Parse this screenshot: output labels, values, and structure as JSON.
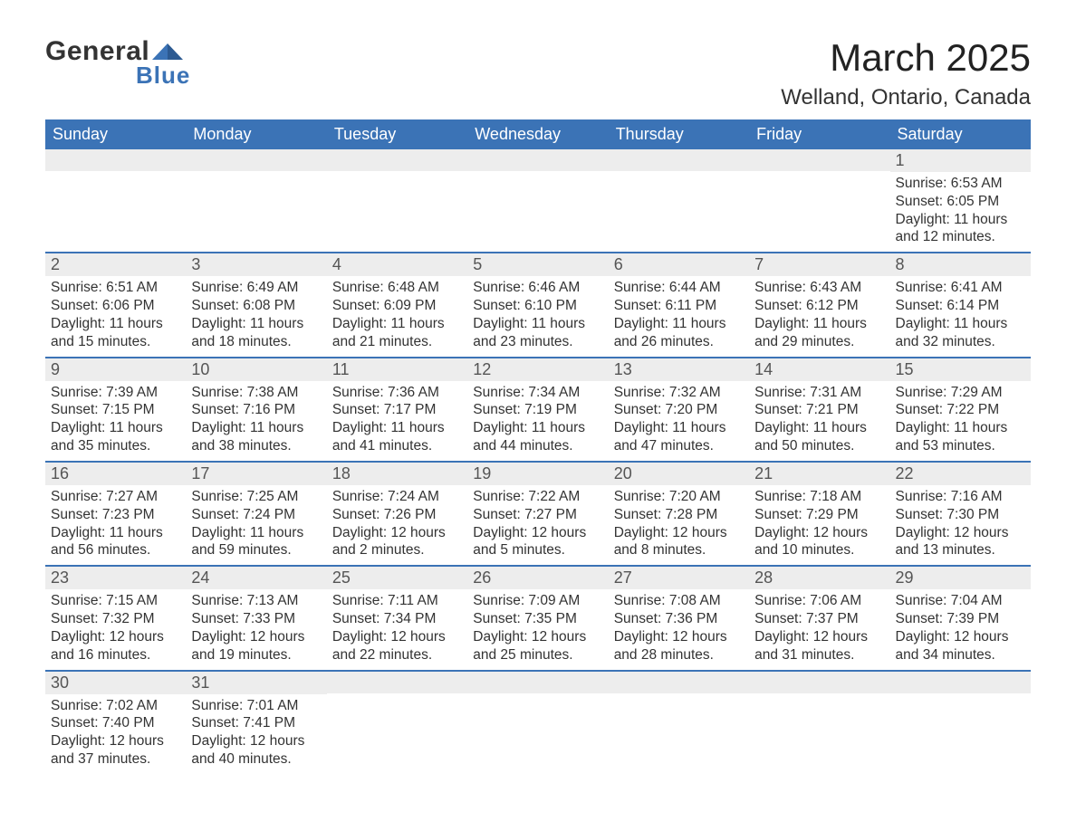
{
  "logo": {
    "text1": "General",
    "text2": "Blue",
    "accent": "#3b73b6"
  },
  "title": "March 2025",
  "location": "Welland, Ontario, Canada",
  "colors": {
    "header_bg": "#3b73b6",
    "header_text": "#ffffff",
    "row_divider": "#3b73b6",
    "daynum_bg": "#ededed",
    "text": "#333333"
  },
  "day_headers": [
    "Sunday",
    "Monday",
    "Tuesday",
    "Wednesday",
    "Thursday",
    "Friday",
    "Saturday"
  ],
  "weeks": [
    [
      {
        "blank": true
      },
      {
        "blank": true
      },
      {
        "blank": true
      },
      {
        "blank": true
      },
      {
        "blank": true
      },
      {
        "blank": true
      },
      {
        "n": "1",
        "sr": "6:53 AM",
        "ss": "6:05 PM",
        "dl": "11 hours and 12 minutes."
      }
    ],
    [
      {
        "n": "2",
        "sr": "6:51 AM",
        "ss": "6:06 PM",
        "dl": "11 hours and 15 minutes."
      },
      {
        "n": "3",
        "sr": "6:49 AM",
        "ss": "6:08 PM",
        "dl": "11 hours and 18 minutes."
      },
      {
        "n": "4",
        "sr": "6:48 AM",
        "ss": "6:09 PM",
        "dl": "11 hours and 21 minutes."
      },
      {
        "n": "5",
        "sr": "6:46 AM",
        "ss": "6:10 PM",
        "dl": "11 hours and 23 minutes."
      },
      {
        "n": "6",
        "sr": "6:44 AM",
        "ss": "6:11 PM",
        "dl": "11 hours and 26 minutes."
      },
      {
        "n": "7",
        "sr": "6:43 AM",
        "ss": "6:12 PM",
        "dl": "11 hours and 29 minutes."
      },
      {
        "n": "8",
        "sr": "6:41 AM",
        "ss": "6:14 PM",
        "dl": "11 hours and 32 minutes."
      }
    ],
    [
      {
        "n": "9",
        "sr": "7:39 AM",
        "ss": "7:15 PM",
        "dl": "11 hours and 35 minutes."
      },
      {
        "n": "10",
        "sr": "7:38 AM",
        "ss": "7:16 PM",
        "dl": "11 hours and 38 minutes."
      },
      {
        "n": "11",
        "sr": "7:36 AM",
        "ss": "7:17 PM",
        "dl": "11 hours and 41 minutes."
      },
      {
        "n": "12",
        "sr": "7:34 AM",
        "ss": "7:19 PM",
        "dl": "11 hours and 44 minutes."
      },
      {
        "n": "13",
        "sr": "7:32 AM",
        "ss": "7:20 PM",
        "dl": "11 hours and 47 minutes."
      },
      {
        "n": "14",
        "sr": "7:31 AM",
        "ss": "7:21 PM",
        "dl": "11 hours and 50 minutes."
      },
      {
        "n": "15",
        "sr": "7:29 AM",
        "ss": "7:22 PM",
        "dl": "11 hours and 53 minutes."
      }
    ],
    [
      {
        "n": "16",
        "sr": "7:27 AM",
        "ss": "7:23 PM",
        "dl": "11 hours and 56 minutes."
      },
      {
        "n": "17",
        "sr": "7:25 AM",
        "ss": "7:24 PM",
        "dl": "11 hours and 59 minutes."
      },
      {
        "n": "18",
        "sr": "7:24 AM",
        "ss": "7:26 PM",
        "dl": "12 hours and 2 minutes."
      },
      {
        "n": "19",
        "sr": "7:22 AM",
        "ss": "7:27 PM",
        "dl": "12 hours and 5 minutes."
      },
      {
        "n": "20",
        "sr": "7:20 AM",
        "ss": "7:28 PM",
        "dl": "12 hours and 8 minutes."
      },
      {
        "n": "21",
        "sr": "7:18 AM",
        "ss": "7:29 PM",
        "dl": "12 hours and 10 minutes."
      },
      {
        "n": "22",
        "sr": "7:16 AM",
        "ss": "7:30 PM",
        "dl": "12 hours and 13 minutes."
      }
    ],
    [
      {
        "n": "23",
        "sr": "7:15 AM",
        "ss": "7:32 PM",
        "dl": "12 hours and 16 minutes."
      },
      {
        "n": "24",
        "sr": "7:13 AM",
        "ss": "7:33 PM",
        "dl": "12 hours and 19 minutes."
      },
      {
        "n": "25",
        "sr": "7:11 AM",
        "ss": "7:34 PM",
        "dl": "12 hours and 22 minutes."
      },
      {
        "n": "26",
        "sr": "7:09 AM",
        "ss": "7:35 PM",
        "dl": "12 hours and 25 minutes."
      },
      {
        "n": "27",
        "sr": "7:08 AM",
        "ss": "7:36 PM",
        "dl": "12 hours and 28 minutes."
      },
      {
        "n": "28",
        "sr": "7:06 AM",
        "ss": "7:37 PM",
        "dl": "12 hours and 31 minutes."
      },
      {
        "n": "29",
        "sr": "7:04 AM",
        "ss": "7:39 PM",
        "dl": "12 hours and 34 minutes."
      }
    ],
    [
      {
        "n": "30",
        "sr": "7:02 AM",
        "ss": "7:40 PM",
        "dl": "12 hours and 37 minutes."
      },
      {
        "n": "31",
        "sr": "7:01 AM",
        "ss": "7:41 PM",
        "dl": "12 hours and 40 minutes."
      },
      {
        "blank": true
      },
      {
        "blank": true
      },
      {
        "blank": true
      },
      {
        "blank": true
      },
      {
        "blank": true
      }
    ]
  ],
  "labels": {
    "sunrise": "Sunrise: ",
    "sunset": "Sunset: ",
    "daylight": "Daylight: "
  }
}
